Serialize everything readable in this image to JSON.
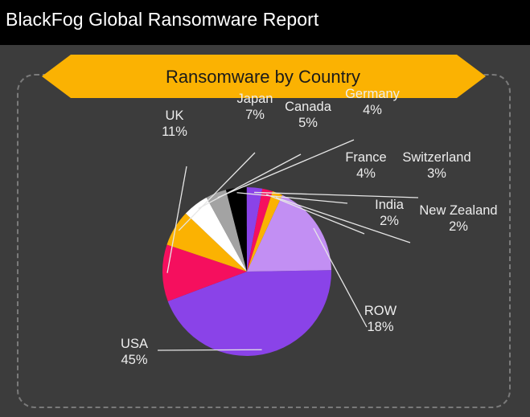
{
  "header": {
    "title": "BlackFog Global Ransomware Report"
  },
  "colors": {
    "background": "#3c3c3c",
    "header_bar": "#000000",
    "banner": "#fbb202"
  },
  "chart_data": {
    "type": "pie",
    "title": "Ransomware by Country",
    "slices": [
      {
        "label": "USA",
        "display": "45%",
        "value": 45,
        "color": "#8a43e8"
      },
      {
        "label": "UK",
        "display": "11%",
        "value": 11,
        "color": "#f50f5e"
      },
      {
        "label": "Japan",
        "display": "7%",
        "value": 7,
        "color": "#fbb202"
      },
      {
        "label": "Canada",
        "display": "5%",
        "value": 5,
        "color": "#ffffff"
      },
      {
        "label": "Germany",
        "display": "4%",
        "value": 4,
        "color": "#a3a3a3"
      },
      {
        "label": "France",
        "display": "4%",
        "value": 4,
        "color": "#000000"
      },
      {
        "label": "Switzerland",
        "display": "3%",
        "value": 3,
        "color": "#8a43e8"
      },
      {
        "label": "India",
        "display": "2%",
        "value": 2,
        "color": "#f50f5e"
      },
      {
        "label": "New Zealand",
        "display": "2%",
        "value": 2,
        "color": "#fbb202"
      },
      {
        "label": "ROW",
        "display": "18%",
        "value": 18,
        "color": "#c28ff3"
      }
    ]
  }
}
